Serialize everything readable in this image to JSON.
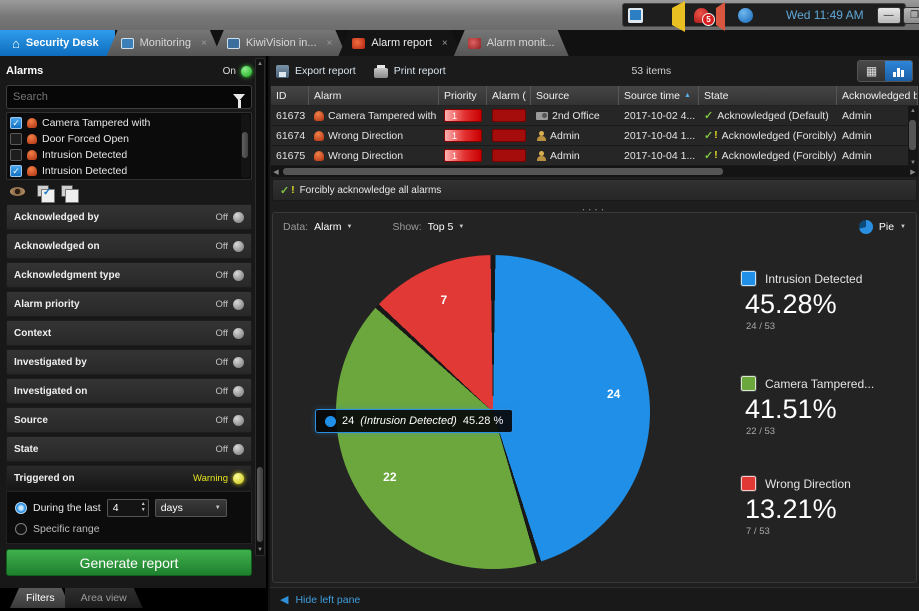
{
  "titlebar": {
    "clock": "Wed 11:49 AM",
    "alarm_badge": "5"
  },
  "tabs": {
    "home": "Security Desk",
    "items": [
      {
        "label": "Monitoring"
      },
      {
        "label": "KiwiVision in..."
      },
      {
        "label": "Alarm report"
      },
      {
        "label": "Alarm monit..."
      }
    ]
  },
  "sidebar": {
    "panel_title": "Alarms",
    "panel_toggle": "On",
    "search_placeholder": "Search",
    "alarm_types": [
      {
        "label": "Camera Tampered with",
        "checked": true
      },
      {
        "label": "Door Forced Open",
        "checked": false
      },
      {
        "label": "Intrusion Detected",
        "checked": false
      },
      {
        "label": "Intrusion Detected",
        "checked": true
      }
    ],
    "filters": [
      {
        "label": "Acknowledged by",
        "state": "Off"
      },
      {
        "label": "Acknowledged on",
        "state": "Off"
      },
      {
        "label": "Acknowledgment type",
        "state": "Off"
      },
      {
        "label": "Alarm priority",
        "state": "Off"
      },
      {
        "label": "Context",
        "state": "Off"
      },
      {
        "label": "Investigated by",
        "state": "Off"
      },
      {
        "label": "Investigated on",
        "state": "Off"
      },
      {
        "label": "Source",
        "state": "Off"
      },
      {
        "label": "State",
        "state": "Off"
      },
      {
        "label": "Triggered on",
        "state": "Warning"
      }
    ],
    "time_range": {
      "during_label": "During the last",
      "value": "4",
      "unit": "days",
      "specific_label": "Specific range"
    },
    "generate_label": "Generate report",
    "bottom_tabs": {
      "filters": "Filters",
      "area_view": "Area view"
    }
  },
  "report": {
    "export_label": "Export report",
    "print_label": "Print report",
    "items_count": "53 items",
    "columns": {
      "id": "ID",
      "alarm": "Alarm",
      "priority": "Priority",
      "alarm2": "Alarm (",
      "source": "Source",
      "source_time": "Source time",
      "state": "State",
      "ack_by": "Acknowledged by"
    },
    "rows": [
      {
        "id": "61673",
        "alarm": "Camera Tampered with",
        "priority": "1",
        "source": "2nd Office",
        "time": "2017-10-02 4...",
        "state": "Acknowledged (Default)",
        "ack_by": "Admin"
      },
      {
        "id": "61674",
        "alarm": "Wrong Direction",
        "priority": "1",
        "source": "Admin",
        "time": "2017-10-04 1...",
        "state": "Acknowledged (Forcibly)",
        "ack_by": "Admin"
      },
      {
        "id": "61675",
        "alarm": "Wrong Direction",
        "priority": "1",
        "source": "Admin",
        "time": "2017-10-04 1...",
        "state": "Acknowledged (Forcibly)",
        "ack_by": "Admin"
      }
    ],
    "ack_all_label": "Forcibly acknowledge all alarms"
  },
  "chart_controls": {
    "data_label": "Data:",
    "data_value": "Alarm",
    "show_label": "Show:",
    "show_value": "Top 5",
    "type_value": "Pie"
  },
  "chart_data": {
    "type": "pie",
    "total": 53,
    "series": [
      {
        "label": "Intrusion Detected",
        "value": 24,
        "percent": "45.28%",
        "fraction": "24 / 53",
        "color": "#1f8fe8"
      },
      {
        "label": "Camera Tampered...",
        "value": 22,
        "percent": "41.51%",
        "fraction": "22 / 53",
        "color": "#6ca73e"
      },
      {
        "label": "Wrong Direction",
        "value": 7,
        "percent": "13.21%",
        "fraction": "7 / 53",
        "color": "#e03936"
      }
    ],
    "legend_position": "right",
    "tooltip": {
      "value": "24",
      "label": "(Intrusion Detected)",
      "percent": "45.28 %"
    }
  },
  "footer": {
    "hide_pane_label": "Hide left pane"
  },
  "colors": {
    "accent_blue": "#1e8fe8",
    "toggle_on_green": "#42d442",
    "warning_yellow": "#e8e520",
    "priority_red": "#d40000",
    "ack_check_green": "#7dc242",
    "generate_green": "#2f9e3f",
    "home_tab_blue": "#1585d8",
    "clock_blue": "#5fa8d8"
  }
}
